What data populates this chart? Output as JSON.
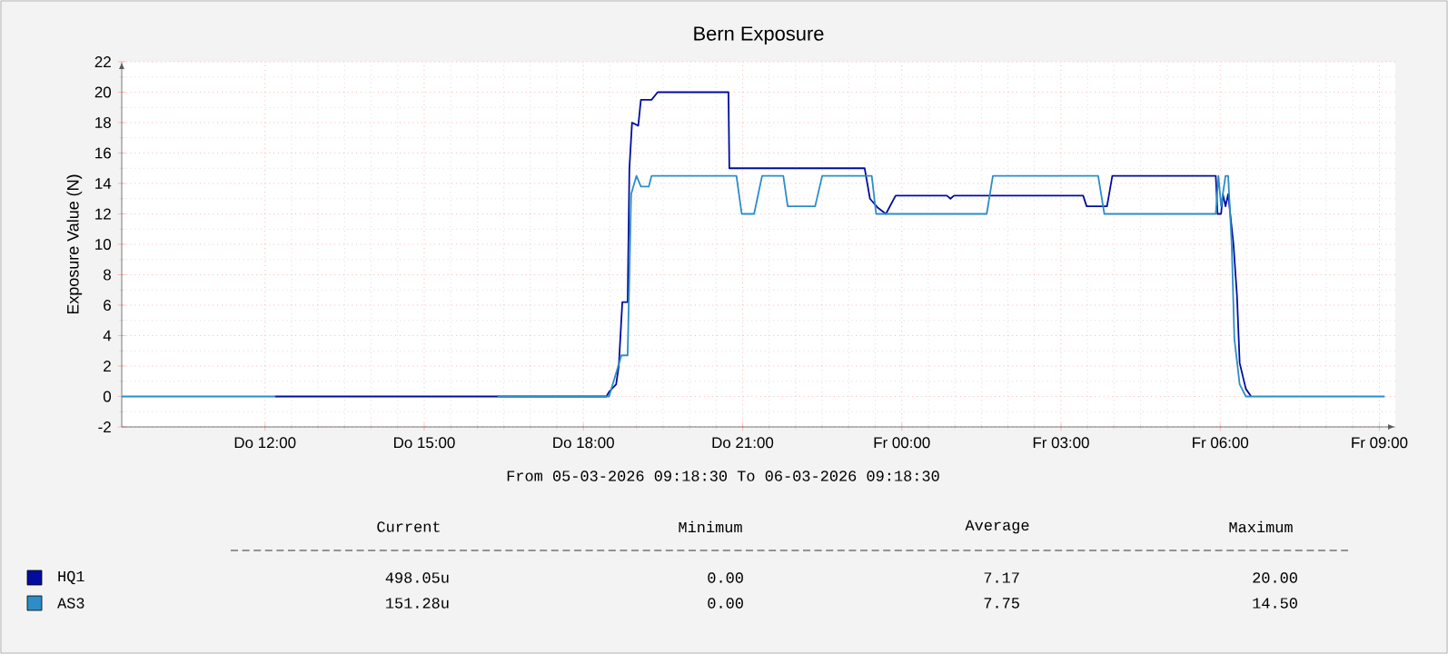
{
  "chart_data": {
    "type": "line",
    "title": "Bern Exposure",
    "ylabel": "Exposure Value (N)",
    "xlim": [
      "2026-03-05T09:18",
      "2026-03-06T09:18"
    ],
    "ylim": [
      -2,
      22
    ],
    "xticks": [
      {
        "value": "2026-03-05T12:00",
        "label": "Do 12:00"
      },
      {
        "value": "2026-03-05T15:00",
        "label": "Do 15:00"
      },
      {
        "value": "2026-03-05T18:00",
        "label": "Do 18:00"
      },
      {
        "value": "2026-03-05T21:00",
        "label": "Do 21:00"
      },
      {
        "value": "2026-03-06T00:00",
        "label": "Fr 00:00"
      },
      {
        "value": "2026-03-06T03:00",
        "label": "Fr 03:00"
      },
      {
        "value": "2026-03-06T06:00",
        "label": "Fr 06:00"
      },
      {
        "value": "2026-03-06T09:00",
        "label": "Fr 09:00"
      }
    ],
    "yticks": [
      -2,
      0,
      2,
      4,
      6,
      8,
      10,
      12,
      14,
      16,
      18,
      20,
      22
    ],
    "grid": true,
    "legend": "bottom",
    "marker": "none",
    "line_style": "solid",
    "series": [
      {
        "name": "HQ1",
        "color": "#000d9e",
        "x": [
          "2026-03-05T12:11",
          "2026-03-05T16:23",
          "2026-03-05T18:26",
          "2026-03-05T18:29",
          "2026-03-05T18:37",
          "2026-03-05T18:40",
          "2026-03-05T18:44",
          "2026-03-05T18:50",
          "2026-03-05T18:52",
          "2026-03-05T18:55",
          "2026-03-05T19:02",
          "2026-03-05T19:05",
          "2026-03-05T19:17",
          "2026-03-05T19:24",
          "2026-03-05T20:44",
          "2026-03-05T20:45",
          "2026-03-05T23:18",
          "2026-03-05T23:24",
          "2026-03-05T23:33",
          "2026-03-05T23:42",
          "2026-03-05T23:53",
          "2026-03-06T00:51",
          "2026-03-06T00:55",
          "2026-03-06T00:59",
          "2026-03-06T03:25",
          "2026-03-06T03:29",
          "2026-03-06T03:52",
          "2026-03-06T03:58",
          "2026-03-06T05:55",
          "2026-03-06T05:57",
          "2026-03-06T06:01",
          "2026-03-06T06:03",
          "2026-03-06T06:06",
          "2026-03-06T06:09",
          "2026-03-06T06:15",
          "2026-03-06T06:19",
          "2026-03-06T06:22",
          "2026-03-06T06:29",
          "2026-03-06T06:35"
        ],
        "values": [
          0,
          0,
          0,
          0.3,
          0.8,
          2,
          6.2,
          6.2,
          15,
          18,
          17.8,
          19.5,
          19.5,
          20,
          20,
          15,
          15,
          13,
          12.4,
          12,
          13.2,
          13.2,
          13,
          13.2,
          13.2,
          12.5,
          12.5,
          14.5,
          14.5,
          12,
          12,
          13.3,
          12.5,
          13.3,
          10,
          6.6,
          2.2,
          0.5,
          0
        ]
      },
      {
        "name": "AS3",
        "color": "#2c8dc8",
        "x": [
          "2026-03-05T09:18",
          "2026-03-05T12:11",
          "2026-03-05T14:18",
          "2026-03-05T16:23",
          "2026-03-05T18:29",
          "2026-03-05T18:43",
          "2026-03-05T18:50",
          "2026-03-05T18:54",
          "2026-03-05T19:00",
          "2026-03-05T19:05",
          "2026-03-05T19:14",
          "2026-03-05T19:17",
          "2026-03-05T20:53",
          "2026-03-05T20:59",
          "2026-03-05T21:13",
          "2026-03-05T21:22",
          "2026-03-05T21:46",
          "2026-03-05T21:51",
          "2026-03-05T22:22",
          "2026-03-05T22:30",
          "2026-03-05T23:26",
          "2026-03-05T23:31",
          "2026-03-06T01:36",
          "2026-03-06T01:43",
          "2026-03-06T03:42",
          "2026-03-06T03:49",
          "2026-03-06T05:55",
          "2026-03-06T05:58",
          "2026-03-06T06:01",
          "2026-03-06T06:06",
          "2026-03-06T06:09",
          "2026-03-06T06:13",
          "2026-03-06T06:16",
          "2026-03-06T06:22",
          "2026-03-06T06:29",
          "2026-03-06T09:06"
        ],
        "values": [
          0,
          0,
          null,
          0,
          0,
          2.7,
          2.7,
          13.3,
          14.5,
          13.8,
          13.8,
          14.5,
          14.5,
          12,
          12,
          14.5,
          14.5,
          12.5,
          12.5,
          14.5,
          14.5,
          12,
          12,
          14.5,
          14.5,
          12,
          12,
          14.5,
          12.5,
          14.5,
          14.5,
          10,
          3.8,
          0.8,
          0,
          0
        ]
      }
    ],
    "annotations": [
      "From 05-03-2026 09:18:30 To 06-03-2026 09:18:30",
      "Current",
      "Minimum",
      "Average",
      "Maximum",
      "498.05u",
      "0.00",
      "7.17",
      "20.00",
      "151.28u",
      "0.00",
      "7.75",
      "14.50"
    ]
  }
}
